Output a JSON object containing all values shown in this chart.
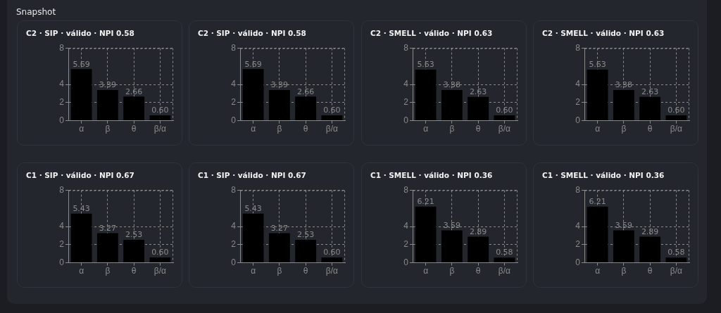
{
  "chart_data": [
    {
      "type": "other",
      "title": "Snapshot"
    },
    {
      "type": "bar",
      "title": "C2 · SIP · válido · NPI 0.58",
      "categories": [
        "α",
        "β",
        "θ",
        "β/α"
      ],
      "values": [
        5.69,
        3.39,
        2.66,
        0.6
      ],
      "value_labels": [
        "5.69",
        "3.39",
        "2.66",
        "0.60"
      ],
      "color": "#000000",
      "ylim": [
        0,
        8
      ],
      "yticks": [
        0,
        2,
        4,
        8
      ],
      "grid": true
    },
    {
      "type": "bar",
      "title": "C2 · SIP · válido · NPI 0.58",
      "categories": [
        "α",
        "β",
        "θ",
        "β/α"
      ],
      "values": [
        5.69,
        3.39,
        2.66,
        0.6
      ],
      "value_labels": [
        "5.69",
        "3.39",
        "2.66",
        "0.60"
      ],
      "color": "#000000",
      "ylim": [
        0,
        8
      ],
      "yticks": [
        0,
        2,
        4,
        8
      ],
      "grid": true
    },
    {
      "type": "bar",
      "title": "C2 · SMELL · válido · NPI 0.63",
      "categories": [
        "α",
        "β",
        "θ",
        "β/α"
      ],
      "values": [
        5.63,
        3.38,
        2.63,
        0.6
      ],
      "value_labels": [
        "5.63",
        "3.38",
        "2.63",
        "0.60"
      ],
      "color": "#000000",
      "ylim": [
        0,
        8
      ],
      "yticks": [
        0,
        2,
        4,
        8
      ],
      "grid": true
    },
    {
      "type": "bar",
      "title": "C2 · SMELL · válido · NPI 0.63",
      "categories": [
        "α",
        "β",
        "θ",
        "β/α"
      ],
      "values": [
        5.63,
        3.38,
        2.63,
        0.6
      ],
      "value_labels": [
        "5.63",
        "3.38",
        "2.63",
        "0.60"
      ],
      "color": "#000000",
      "ylim": [
        0,
        8
      ],
      "yticks": [
        0,
        2,
        4,
        8
      ],
      "grid": true
    },
    {
      "type": "bar",
      "title": "C1 · SIP · válido · NPI 0.67",
      "categories": [
        "α",
        "β",
        "θ",
        "β/α"
      ],
      "values": [
        5.43,
        3.27,
        2.53,
        0.6
      ],
      "value_labels": [
        "5.43",
        "3.27",
        "2.53",
        "0.60"
      ],
      "color": "#000000",
      "ylim": [
        0,
        8
      ],
      "yticks": [
        0,
        2,
        4,
        8
      ],
      "grid": true
    },
    {
      "type": "bar",
      "title": "C1 · SIP · válido · NPI 0.67",
      "categories": [
        "α",
        "β",
        "θ",
        "β/α"
      ],
      "values": [
        5.43,
        3.27,
        2.53,
        0.6
      ],
      "value_labels": [
        "5.43",
        "3.27",
        "2.53",
        "0.60"
      ],
      "color": "#000000",
      "ylim": [
        0,
        8
      ],
      "yticks": [
        0,
        2,
        4,
        8
      ],
      "grid": true
    },
    {
      "type": "bar",
      "title": "C1 · SMELL · válido · NPI 0.36",
      "categories": [
        "α",
        "β",
        "θ",
        "β/α"
      ],
      "values": [
        6.21,
        3.59,
        2.89,
        0.58
      ],
      "value_labels": [
        "6.21",
        "3.59",
        "2.89",
        "0.58"
      ],
      "color": "#000000",
      "ylim": [
        0,
        8
      ],
      "yticks": [
        0,
        2,
        4,
        8
      ],
      "grid": true
    },
    {
      "type": "bar",
      "title": "C1 · SMELL · válido · NPI 0.36",
      "categories": [
        "α",
        "β",
        "θ",
        "β/α"
      ],
      "values": [
        6.21,
        3.59,
        2.89,
        0.58
      ],
      "value_labels": [
        "6.21",
        "3.59",
        "2.89",
        "0.58"
      ],
      "color": "#000000",
      "ylim": [
        0,
        8
      ],
      "yticks": [
        0,
        2,
        4,
        8
      ],
      "grid": true
    }
  ]
}
